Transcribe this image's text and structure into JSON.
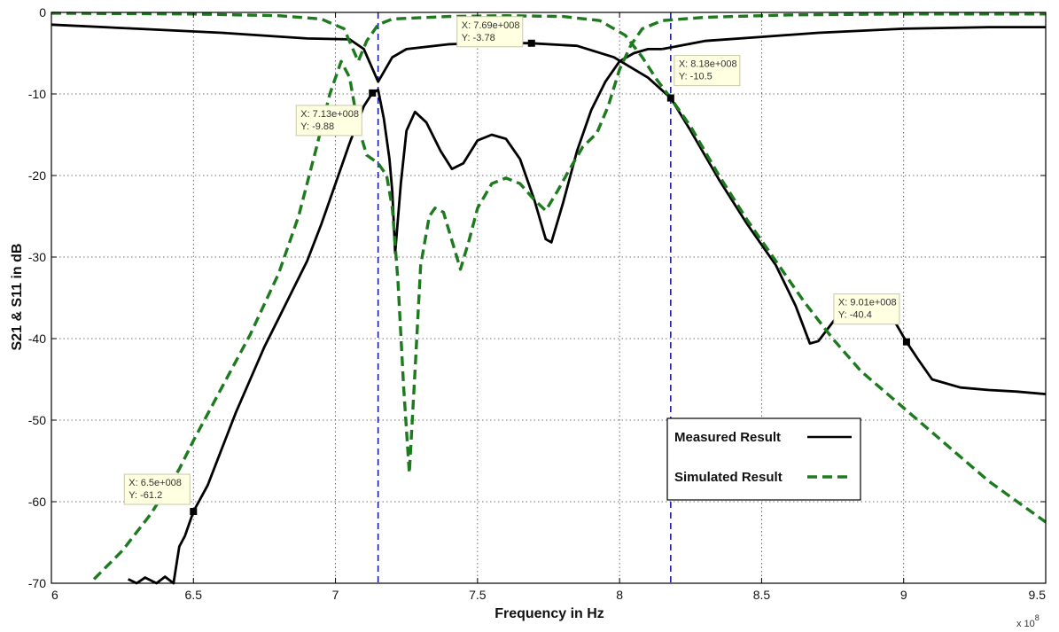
{
  "chart_data": {
    "type": "line",
    "title": "",
    "xlabel": "Frequency in Hz",
    "ylabel": "S21 & S11 in dB",
    "x_exponent_label": "x 10",
    "x_exponent_power": "8",
    "xlim": [
      6,
      9.5
    ],
    "ylim": [
      -70,
      0
    ],
    "x_ticks": [
      6,
      6.5,
      7,
      7.5,
      8,
      8.5,
      9,
      9.5
    ],
    "x_tick_labels": [
      "6",
      "6.5",
      "7",
      "7.5",
      "8",
      "8.5",
      "9",
      "9.5"
    ],
    "y_ticks": [
      0,
      -10,
      -20,
      -30,
      -40,
      -50,
      -60,
      -70
    ],
    "y_tick_labels": [
      "0",
      "-10",
      "-20",
      "-30",
      "-40",
      "-50",
      "-60",
      "-70"
    ],
    "grid": true,
    "legend_position": "bottom-right",
    "colors": {
      "measured": "#000000",
      "simulated": "#1e7a1e",
      "marker_lines": "#1a1aa0"
    },
    "vertical_markers_x": [
      7.15,
      8.18
    ],
    "series": [
      {
        "name": "Measured Result",
        "key": "measured_s21",
        "style": "solid",
        "points": [
          [
            6.27,
            -69.5
          ],
          [
            6.3,
            -70
          ],
          [
            6.33,
            -69.3
          ],
          [
            6.37,
            -70
          ],
          [
            6.4,
            -69.2
          ],
          [
            6.43,
            -70
          ],
          [
            6.45,
            -65.5
          ],
          [
            6.47,
            -64.2
          ],
          [
            6.5,
            -61.2
          ],
          [
            6.55,
            -58
          ],
          [
            6.6,
            -53.5
          ],
          [
            6.65,
            -49
          ],
          [
            6.7,
            -45
          ],
          [
            6.75,
            -41
          ],
          [
            6.8,
            -37.5
          ],
          [
            6.85,
            -34
          ],
          [
            6.9,
            -30.5
          ],
          [
            6.95,
            -26
          ],
          [
            7,
            -21
          ],
          [
            7.05,
            -16
          ],
          [
            7.1,
            -11.5
          ],
          [
            7.13,
            -9.88
          ],
          [
            7.15,
            -9.5
          ],
          [
            7.17,
            -13
          ],
          [
            7.19,
            -18
          ],
          [
            7.2,
            -22
          ],
          [
            7.21,
            -29.5
          ],
          [
            7.23,
            -21
          ],
          [
            7.25,
            -14.5
          ],
          [
            7.28,
            -12.2
          ],
          [
            7.32,
            -13.5
          ],
          [
            7.37,
            -17
          ],
          [
            7.41,
            -19.2
          ],
          [
            7.45,
            -18.5
          ],
          [
            7.5,
            -15.7
          ],
          [
            7.55,
            -15
          ],
          [
            7.6,
            -15.5
          ],
          [
            7.65,
            -18
          ],
          [
            7.7,
            -23
          ],
          [
            7.74,
            -27.8
          ],
          [
            7.76,
            -28.2
          ],
          [
            7.8,
            -23.5
          ],
          [
            7.85,
            -17
          ],
          [
            7.9,
            -12
          ],
          [
            7.95,
            -8.5
          ],
          [
            8,
            -6
          ],
          [
            8.05,
            -5
          ],
          [
            8.1,
            -4.5
          ],
          [
            8.15,
            -4.5
          ]
        ]
      },
      {
        "name": "Measured Result",
        "key": "measured_s11",
        "style": "solid",
        "points": [
          [
            6,
            -1.5
          ],
          [
            6.3,
            -2
          ],
          [
            6.6,
            -2.5
          ],
          [
            6.9,
            -3.2
          ],
          [
            7.05,
            -3.3
          ],
          [
            7.1,
            -4.5
          ],
          [
            7.15,
            -8.5
          ],
          [
            7.2,
            -5.5
          ],
          [
            7.25,
            -4.5
          ],
          [
            7.4,
            -3.9
          ],
          [
            7.55,
            -3.7
          ],
          [
            7.69,
            -3.78
          ],
          [
            7.85,
            -4.1
          ],
          [
            7.98,
            -5.5
          ],
          [
            8.1,
            -8
          ],
          [
            8.18,
            -10.5
          ],
          [
            8.25,
            -14.5
          ],
          [
            8.35,
            -20.5
          ],
          [
            8.45,
            -26
          ],
          [
            8.55,
            -31
          ],
          [
            8.62,
            -36
          ],
          [
            8.67,
            -40.6
          ],
          [
            8.7,
            -40.3
          ],
          [
            8.75,
            -38
          ],
          [
            8.8,
            -35.8
          ],
          [
            8.86,
            -34.8
          ],
          [
            8.92,
            -35.5
          ],
          [
            8.97,
            -38
          ],
          [
            9.01,
            -40.4
          ],
          [
            9.05,
            -42.5
          ],
          [
            9.1,
            -45
          ],
          [
            9.2,
            -46
          ],
          [
            9.3,
            -46.3
          ],
          [
            9.4,
            -46.5
          ],
          [
            9.5,
            -46.8
          ]
        ]
      },
      {
        "name": "Measured Result",
        "key": "measured_s11_top",
        "style": "solid",
        "points": [
          [
            8.15,
            -4.5
          ],
          [
            8.3,
            -3.5
          ],
          [
            8.5,
            -3
          ],
          [
            8.7,
            -2.5
          ],
          [
            9,
            -2
          ],
          [
            9.3,
            -1.8
          ],
          [
            9.5,
            -1.8
          ]
        ]
      },
      {
        "name": "Simulated Result",
        "key": "simulated_s21",
        "style": "dashed",
        "points": [
          [
            6.15,
            -69.5
          ],
          [
            6.25,
            -66
          ],
          [
            6.35,
            -61.5
          ],
          [
            6.45,
            -56
          ],
          [
            6.5,
            -52.5
          ],
          [
            6.6,
            -46
          ],
          [
            6.7,
            -39.5
          ],
          [
            6.8,
            -32
          ],
          [
            6.87,
            -25
          ],
          [
            6.93,
            -17
          ],
          [
            6.98,
            -10
          ],
          [
            7.02,
            -6
          ],
          [
            7.05,
            -8
          ],
          [
            7.08,
            -14
          ],
          [
            7.11,
            -17.5
          ],
          [
            7.15,
            -18.5
          ],
          [
            7.18,
            -20
          ],
          [
            7.2,
            -24
          ],
          [
            7.22,
            -33
          ],
          [
            7.24,
            -46
          ],
          [
            7.26,
            -56.5
          ],
          [
            7.28,
            -44
          ],
          [
            7.3,
            -31
          ],
          [
            7.33,
            -25
          ],
          [
            7.35,
            -24
          ],
          [
            7.38,
            -24.5
          ],
          [
            7.41,
            -28
          ],
          [
            7.44,
            -31.5
          ],
          [
            7.47,
            -28
          ],
          [
            7.5,
            -24
          ],
          [
            7.55,
            -21
          ],
          [
            7.6,
            -20.3
          ],
          [
            7.65,
            -21
          ],
          [
            7.7,
            -23
          ],
          [
            7.74,
            -24.3
          ],
          [
            7.78,
            -22
          ],
          [
            7.82,
            -19.5
          ],
          [
            7.87,
            -16.5
          ],
          [
            7.92,
            -14.8
          ],
          [
            7.96,
            -11.5
          ],
          [
            8,
            -7
          ],
          [
            8.04,
            -4
          ],
          [
            8.08,
            -2
          ],
          [
            8.15,
            -1
          ],
          [
            8.3,
            -0.6
          ],
          [
            8.6,
            -0.3
          ],
          [
            9,
            -0.2
          ],
          [
            9.5,
            -0.2
          ]
        ]
      },
      {
        "name": "Simulated Result",
        "key": "simulated_s11",
        "style": "dashed",
        "points": [
          [
            6,
            -0.1
          ],
          [
            6.5,
            -0.2
          ],
          [
            6.8,
            -0.4
          ],
          [
            6.95,
            -0.8
          ],
          [
            7.03,
            -2
          ],
          [
            7.08,
            -6
          ],
          [
            7.11,
            -3.5
          ],
          [
            7.15,
            -1.5
          ],
          [
            7.2,
            -0.8
          ],
          [
            7.4,
            -0.5
          ],
          [
            7.6,
            -0.4
          ],
          [
            7.8,
            -0.5
          ],
          [
            7.93,
            -1
          ],
          [
            8.02,
            -2.8
          ],
          [
            8.08,
            -5.5
          ],
          [
            8.13,
            -8.2
          ],
          [
            8.18,
            -10.5
          ],
          [
            8.25,
            -14
          ],
          [
            8.35,
            -20
          ],
          [
            8.45,
            -25.5
          ],
          [
            8.55,
            -30.5
          ],
          [
            8.65,
            -35.5
          ],
          [
            8.75,
            -40
          ],
          [
            8.85,
            -44
          ],
          [
            9,
            -48.5
          ],
          [
            9.1,
            -51.5
          ],
          [
            9.2,
            -54.5
          ],
          [
            9.3,
            -57.5
          ],
          [
            9.4,
            -60
          ],
          [
            9.5,
            -62.5
          ]
        ]
      }
    ],
    "data_tips": [
      {
        "key": "tip1",
        "x": 6.5,
        "y": -61.2,
        "x_text": "X: 6.5e+008",
        "y_text": "Y: -61.2"
      },
      {
        "key": "tip2",
        "x": 7.13,
        "y": -9.88,
        "x_text": "X: 7.13e+008",
        "y_text": "Y: -9.88"
      },
      {
        "key": "tip3",
        "x": 7.69,
        "y": -3.78,
        "x_text": "X: 7.69e+008",
        "y_text": "Y: -3.78"
      },
      {
        "key": "tip4",
        "x": 8.18,
        "y": -10.5,
        "x_text": "X: 8.18e+008",
        "y_text": "Y: -10.5"
      },
      {
        "key": "tip5",
        "x": 9.01,
        "y": -40.4,
        "x_text": "X: 9.01e+008",
        "y_text": "Y: -40.4"
      }
    ],
    "legend": [
      {
        "label": "Measured Result",
        "style": "solid"
      },
      {
        "label": "Simulated Result",
        "style": "dashed"
      }
    ]
  }
}
